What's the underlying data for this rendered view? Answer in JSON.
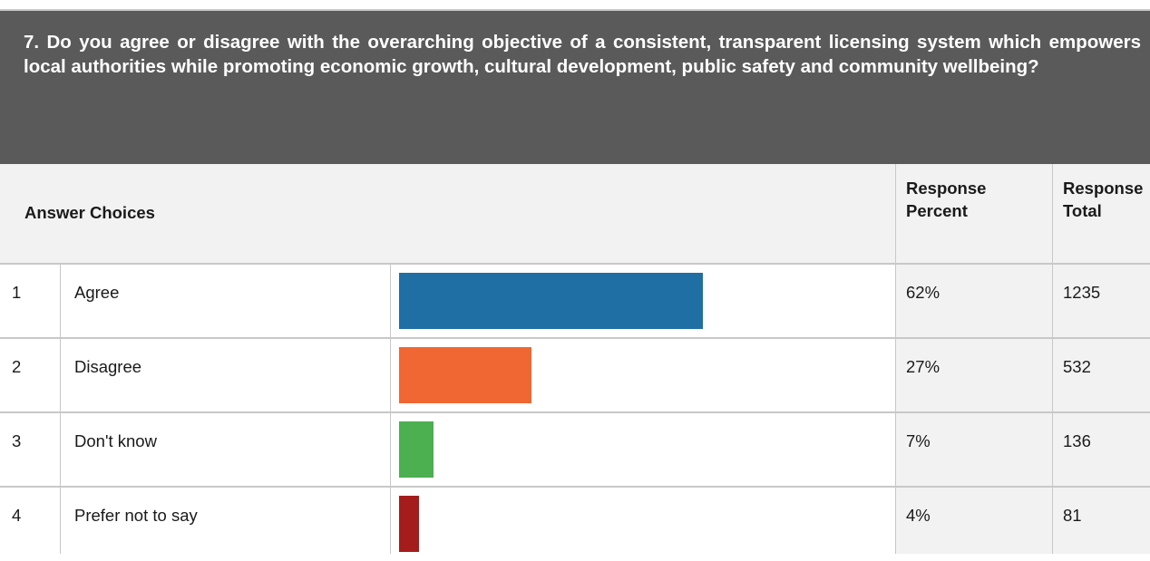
{
  "question": {
    "text": "7. Do you agree or disagree with the overarching objective of a consistent, transparent licensing system which empowers local authorities while promoting economic growth, cultural development, public safety and community wellbeing?"
  },
  "columns": {
    "choices": "Answer Choices",
    "percent_line1": "Response",
    "percent_line2": "Percent",
    "total_line1": "Response",
    "total_line2": "Total"
  },
  "rows": [
    {
      "index": "1",
      "label": "Agree",
      "percent": "62%",
      "total": "1235"
    },
    {
      "index": "2",
      "label": "Disagree",
      "percent": "27%",
      "total": "532"
    },
    {
      "index": "3",
      "label": "Don't know",
      "percent": "7%",
      "total": "136"
    },
    {
      "index": "4",
      "label": "Prefer not to say",
      "percent": "4%",
      "total": "81"
    }
  ],
  "chart_data": {
    "type": "bar",
    "orientation": "horizontal",
    "categories": [
      "Agree",
      "Disagree",
      "Don't know",
      "Prefer not to say"
    ],
    "values": [
      62,
      27,
      7,
      4
    ],
    "totals": [
      1235,
      532,
      136,
      81
    ],
    "colors": [
      "#1f6fa5",
      "#f06733",
      "#4caf50",
      "#a51c1d"
    ],
    "xlim": [
      0,
      100
    ]
  }
}
